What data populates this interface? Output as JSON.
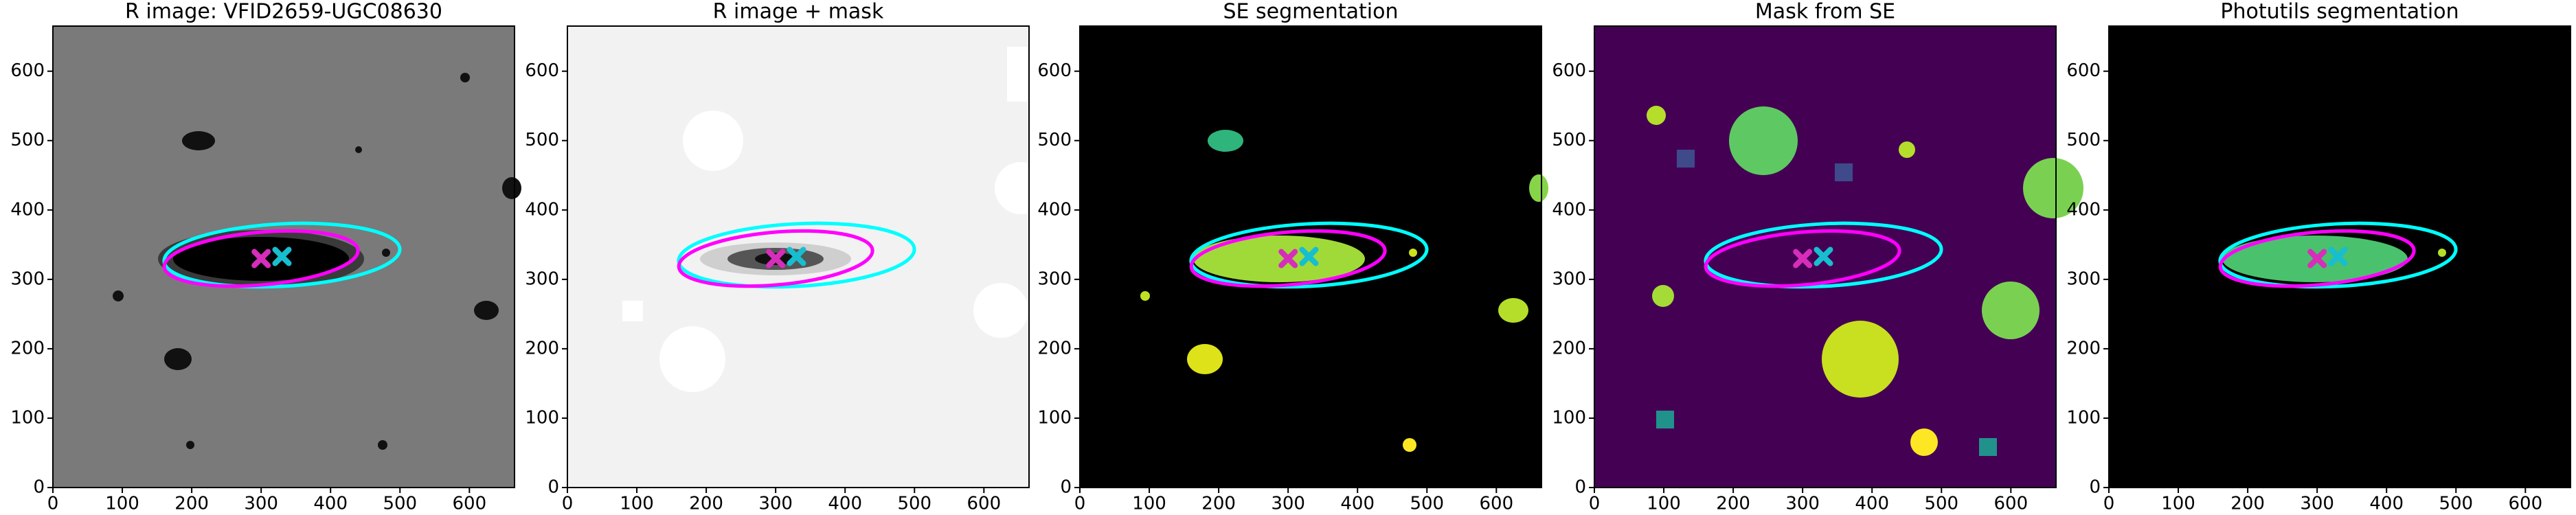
{
  "chart_data": [
    {
      "type": "image",
      "title": "R image: VFID2659-UGC08630",
      "xlim": [
        0,
        665
      ],
      "ylim": [
        0,
        665
      ],
      "xticks": [
        0,
        100,
        200,
        300,
        400,
        500,
        600
      ],
      "yticks": [
        0,
        100,
        200,
        300,
        400,
        500,
        600
      ],
      "ellipses": [
        {
          "color": "#00ffff",
          "x": 330,
          "y": 335,
          "a": 170,
          "b": 45,
          "angle": 3
        },
        {
          "color": "#ff00ff",
          "x": 300,
          "y": 330,
          "a": 140,
          "b": 38,
          "angle": 5
        }
      ],
      "markers": [
        {
          "color": "#d62dba",
          "x": 300,
          "y": 330
        },
        {
          "color": "#17becf",
          "x": 330,
          "y": 333
        }
      ]
    },
    {
      "type": "image",
      "title": "R image + mask",
      "xlim": [
        0,
        665
      ],
      "ylim": [
        0,
        665
      ],
      "xticks": [
        0,
        100,
        200,
        300,
        400,
        500,
        600
      ],
      "yticks": [
        0,
        100,
        200,
        300,
        400,
        500,
        600
      ],
      "ellipses": [
        {
          "color": "#00ffff",
          "x": 330,
          "y": 335,
          "a": 170,
          "b": 45,
          "angle": 3
        },
        {
          "color": "#ff00ff",
          "x": 300,
          "y": 330,
          "a": 140,
          "b": 38,
          "angle": 5
        }
      ],
      "markers": [
        {
          "color": "#d62dba",
          "x": 300,
          "y": 330
        },
        {
          "color": "#17becf",
          "x": 330,
          "y": 333
        }
      ]
    },
    {
      "type": "image",
      "title": "SE segmentation",
      "xlim": [
        0,
        665
      ],
      "ylim": [
        0,
        665
      ],
      "xticks": [
        0,
        100,
        200,
        300,
        400,
        500,
        600
      ],
      "yticks": [
        0,
        100,
        200,
        300,
        400,
        500,
        600
      ],
      "ellipses": [
        {
          "color": "#00ffff",
          "x": 330,
          "y": 335,
          "a": 170,
          "b": 45,
          "angle": 3
        },
        {
          "color": "#ff00ff",
          "x": 300,
          "y": 330,
          "a": 140,
          "b": 38,
          "angle": 5
        }
      ],
      "markers": [
        {
          "color": "#d62dba",
          "x": 300,
          "y": 330
        },
        {
          "color": "#17becf",
          "x": 330,
          "y": 333
        }
      ]
    },
    {
      "type": "image",
      "title": "Mask from SE",
      "xlim": [
        0,
        665
      ],
      "ylim": [
        0,
        665
      ],
      "xticks": [
        0,
        100,
        200,
        300,
        400,
        500,
        600
      ],
      "yticks": [
        0,
        100,
        200,
        300,
        400,
        500,
        600
      ],
      "ellipses": [
        {
          "color": "#00ffff",
          "x": 330,
          "y": 335,
          "a": 170,
          "b": 45,
          "angle": 3
        },
        {
          "color": "#ff00ff",
          "x": 300,
          "y": 330,
          "a": 140,
          "b": 38,
          "angle": 5
        }
      ],
      "markers": [
        {
          "color": "#d62dba",
          "x": 300,
          "y": 330
        },
        {
          "color": "#17becf",
          "x": 330,
          "y": 333
        }
      ]
    },
    {
      "type": "image",
      "title": "Photutils segmentation",
      "xlim": [
        0,
        665
      ],
      "ylim": [
        0,
        665
      ],
      "xticks": [
        0,
        100,
        200,
        300,
        400,
        500,
        600
      ],
      "yticks": [
        0,
        100,
        200,
        300,
        400,
        500,
        600
      ],
      "ellipses": [
        {
          "color": "#00ffff",
          "x": 330,
          "y": 335,
          "a": 170,
          "b": 45,
          "angle": 3
        },
        {
          "color": "#ff00ff",
          "x": 300,
          "y": 330,
          "a": 140,
          "b": 38,
          "angle": 5
        }
      ],
      "markers": [
        {
          "color": "#d62dba",
          "x": 300,
          "y": 330
        },
        {
          "color": "#17becf",
          "x": 330,
          "y": 333
        }
      ]
    }
  ]
}
